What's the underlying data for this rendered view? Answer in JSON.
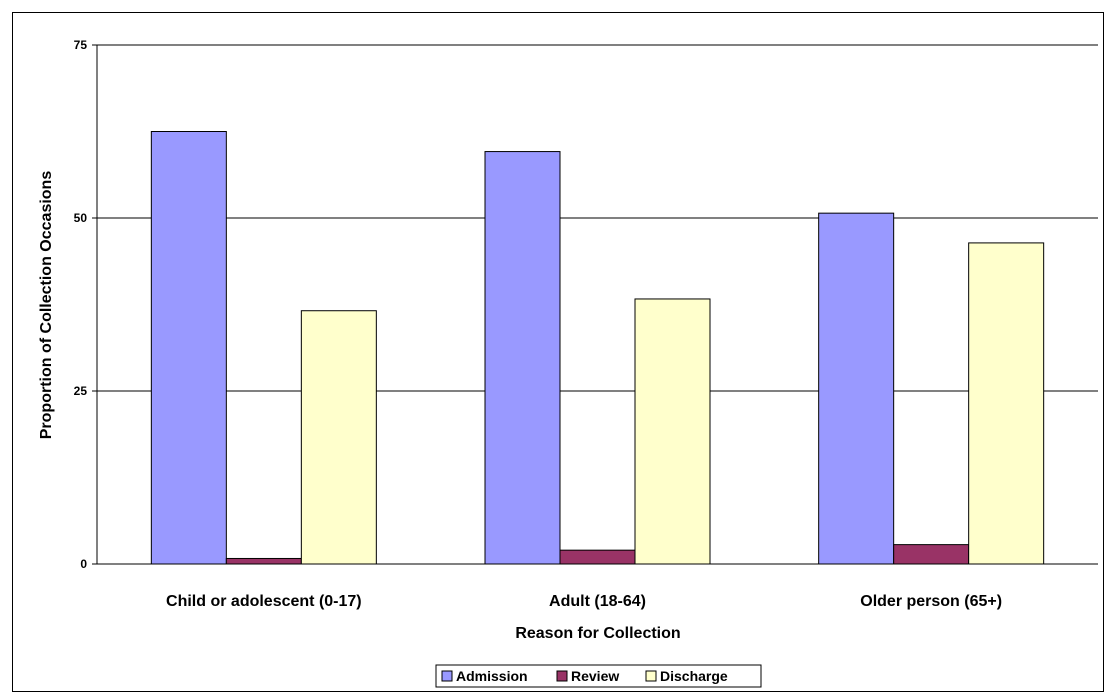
{
  "chart_data": {
    "type": "bar",
    "categories": [
      "Child or adolescent (0-17)",
      "Adult (18-64)",
      "Older person (65+)"
    ],
    "series": [
      {
        "name": "Admission",
        "values": [
          62.5,
          59.6,
          50.7
        ],
        "color": "#9999ff"
      },
      {
        "name": "Review",
        "values": [
          0.8,
          2.0,
          2.8
        ],
        "color": "#993366"
      },
      {
        "name": "Discharge",
        "values": [
          36.6,
          38.3,
          46.4
        ],
        "color": "#ffffcc"
      }
    ],
    "xlabel": "Reason for Collection",
    "ylabel": "Proportion of Collection Occasions",
    "ylim": [
      0,
      75
    ],
    "yticks": [
      0,
      25,
      50,
      75
    ],
    "grid": true,
    "legend_position": "bottom"
  }
}
